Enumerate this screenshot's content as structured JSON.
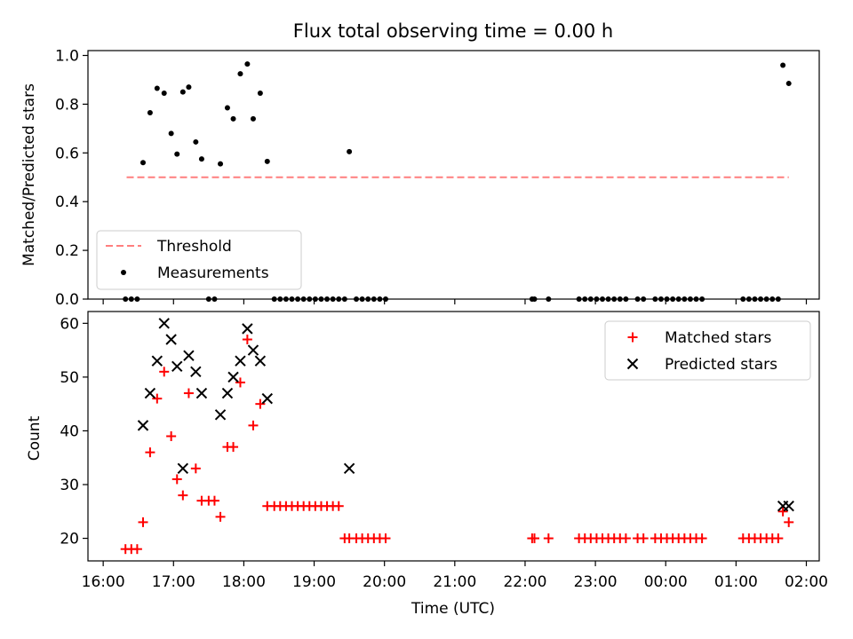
{
  "figure": {
    "title": "Flux total observing time = 0.00 h"
  },
  "colors": {
    "threshold": "#ff7f7f",
    "measurements": "#000000",
    "matched": "#ff0000",
    "predicted": "#000000"
  },
  "chart_data": [
    {
      "type": "scatter",
      "xlabel": "",
      "ylabel": "Matched/Predicted stars",
      "ylim": [
        0.0,
        1.02
      ],
      "yticks": [
        "0.0",
        "0.2",
        "0.4",
        "0.6",
        "0.8",
        "1.0"
      ],
      "legend": {
        "placement": "lower-left",
        "entries": [
          "Threshold",
          "Measurements"
        ]
      },
      "threshold": {
        "name": "Threshold",
        "value": 0.5,
        "x_range": [
          "16:20",
          "01:45"
        ]
      },
      "series": [
        {
          "name": "Measurements",
          "marker": "dot",
          "points": [
            [
              "16:19",
              0.0
            ],
            [
              "16:24",
              0.0
            ],
            [
              "16:29",
              0.0
            ],
            [
              "16:34",
              0.56
            ],
            [
              "16:40",
              0.765
            ],
            [
              "16:46",
              0.865
            ],
            [
              "16:52",
              0.845
            ],
            [
              "16:58",
              0.68
            ],
            [
              "17:03",
              0.595
            ],
            [
              "17:08",
              0.85
            ],
            [
              "17:13",
              0.87
            ],
            [
              "17:19",
              0.645
            ],
            [
              "17:24",
              0.575
            ],
            [
              "17:30",
              0.0
            ],
            [
              "17:35",
              0.0
            ],
            [
              "17:40",
              0.555
            ],
            [
              "17:46",
              0.785
            ],
            [
              "17:51",
              0.74
            ],
            [
              "17:57",
              0.925
            ],
            [
              "18:03",
              0.965
            ],
            [
              "18:08",
              0.74
            ],
            [
              "18:14",
              0.845
            ],
            [
              "18:20",
              0.565
            ],
            [
              "18:26",
              0.0
            ],
            [
              "18:31",
              0.0
            ],
            [
              "18:36",
              0.0
            ],
            [
              "18:41",
              0.0
            ],
            [
              "18:46",
              0.0
            ],
            [
              "18:51",
              0.0
            ],
            [
              "18:56",
              0.0
            ],
            [
              "19:01",
              0.0
            ],
            [
              "19:06",
              0.0
            ],
            [
              "19:11",
              0.0
            ],
            [
              "19:16",
              0.0
            ],
            [
              "19:21",
              0.0
            ],
            [
              "19:26",
              0.0
            ],
            [
              "19:30",
              0.605
            ],
            [
              "19:36",
              0.0
            ],
            [
              "19:41",
              0.0
            ],
            [
              "19:46",
              0.0
            ],
            [
              "19:51",
              0.0
            ],
            [
              "19:56",
              0.0
            ],
            [
              "20:01",
              0.0
            ],
            [
              "22:06",
              0.0
            ],
            [
              "22:08",
              0.0
            ],
            [
              "22:20",
              0.0
            ],
            [
              "22:46",
              0.0
            ],
            [
              "22:51",
              0.0
            ],
            [
              "22:56",
              0.0
            ],
            [
              "23:01",
              0.0
            ],
            [
              "23:06",
              0.0
            ],
            [
              "23:11",
              0.0
            ],
            [
              "23:16",
              0.0
            ],
            [
              "23:21",
              0.0
            ],
            [
              "23:26",
              0.0
            ],
            [
              "23:36",
              0.0
            ],
            [
              "23:41",
              0.0
            ],
            [
              "23:51",
              0.0
            ],
            [
              "23:56",
              0.0
            ],
            [
              "00:01",
              0.0
            ],
            [
              "00:06",
              0.0
            ],
            [
              "00:11",
              0.0
            ],
            [
              "00:16",
              0.0
            ],
            [
              "00:21",
              0.0
            ],
            [
              "00:26",
              0.0
            ],
            [
              "00:31",
              0.0
            ],
            [
              "01:06",
              0.0
            ],
            [
              "01:11",
              0.0
            ],
            [
              "01:16",
              0.0
            ],
            [
              "01:21",
              0.0
            ],
            [
              "01:26",
              0.0
            ],
            [
              "01:31",
              0.0
            ],
            [
              "01:36",
              0.0
            ],
            [
              "01:40",
              0.96
            ],
            [
              "01:45",
              0.885
            ]
          ]
        }
      ]
    },
    {
      "type": "scatter",
      "xlabel": "Time (UTC)",
      "ylabel": "Count",
      "ylim": [
        15.8,
        62.2
      ],
      "xlim": [
        "15:47",
        "02:11"
      ],
      "yticks": [
        "20",
        "30",
        "40",
        "50",
        "60"
      ],
      "xticks": [
        "16:00",
        "17:00",
        "18:00",
        "19:00",
        "20:00",
        "21:00",
        "22:00",
        "23:00",
        "00:00",
        "01:00",
        "02:00"
      ],
      "legend": {
        "placement": "top-right",
        "entries": [
          "Matched stars",
          "Predicted stars"
        ]
      },
      "series": [
        {
          "name": "Matched stars",
          "marker": "plus",
          "points": [
            [
              "16:19",
              18
            ],
            [
              "16:24",
              18
            ],
            [
              "16:29",
              18
            ],
            [
              "16:34",
              23
            ],
            [
              "16:40",
              36
            ],
            [
              "16:46",
              46
            ],
            [
              "16:52",
              51
            ],
            [
              "16:58",
              39
            ],
            [
              "17:03",
              31
            ],
            [
              "17:08",
              28
            ],
            [
              "17:13",
              47
            ],
            [
              "17:19",
              33
            ],
            [
              "17:24",
              27
            ],
            [
              "17:30",
              27
            ],
            [
              "17:35",
              27
            ],
            [
              "17:40",
              24
            ],
            [
              "17:46",
              37
            ],
            [
              "17:51",
              37
            ],
            [
              "17:57",
              49
            ],
            [
              "18:03",
              57
            ],
            [
              "18:08",
              41
            ],
            [
              "18:14",
              45
            ],
            [
              "18:20",
              26
            ],
            [
              "18:26",
              26
            ],
            [
              "18:31",
              26
            ],
            [
              "18:36",
              26
            ],
            [
              "18:41",
              26
            ],
            [
              "18:46",
              26
            ],
            [
              "18:51",
              26
            ],
            [
              "18:56",
              26
            ],
            [
              "19:01",
              26
            ],
            [
              "19:06",
              26
            ],
            [
              "19:11",
              26
            ],
            [
              "19:16",
              26
            ],
            [
              "19:21",
              26
            ],
            [
              "19:26",
              20
            ],
            [
              "19:30",
              20
            ],
            [
              "19:36",
              20
            ],
            [
              "19:41",
              20
            ],
            [
              "19:46",
              20
            ],
            [
              "19:51",
              20
            ],
            [
              "19:56",
              20
            ],
            [
              "20:01",
              20
            ],
            [
              "22:06",
              20
            ],
            [
              "22:08",
              20
            ],
            [
              "22:20",
              20
            ],
            [
              "22:46",
              20
            ],
            [
              "22:51",
              20
            ],
            [
              "22:56",
              20
            ],
            [
              "23:01",
              20
            ],
            [
              "23:06",
              20
            ],
            [
              "23:11",
              20
            ],
            [
              "23:16",
              20
            ],
            [
              "23:21",
              20
            ],
            [
              "23:26",
              20
            ],
            [
              "23:36",
              20
            ],
            [
              "23:41",
              20
            ],
            [
              "23:51",
              20
            ],
            [
              "23:56",
              20
            ],
            [
              "00:01",
              20
            ],
            [
              "00:06",
              20
            ],
            [
              "00:11",
              20
            ],
            [
              "00:16",
              20
            ],
            [
              "00:21",
              20
            ],
            [
              "00:26",
              20
            ],
            [
              "00:31",
              20
            ],
            [
              "01:06",
              20
            ],
            [
              "01:11",
              20
            ],
            [
              "01:16",
              20
            ],
            [
              "01:21",
              20
            ],
            [
              "01:26",
              20
            ],
            [
              "01:31",
              20
            ],
            [
              "01:36",
              20
            ],
            [
              "01:40",
              25
            ],
            [
              "01:45",
              23
            ]
          ]
        },
        {
          "name": "Predicted stars",
          "marker": "x",
          "points": [
            [
              "16:34",
              41
            ],
            [
              "16:40",
              47
            ],
            [
              "16:46",
              53
            ],
            [
              "16:52",
              60
            ],
            [
              "16:58",
              57
            ],
            [
              "17:03",
              52
            ],
            [
              "17:08",
              33
            ],
            [
              "17:13",
              54
            ],
            [
              "17:19",
              51
            ],
            [
              "17:24",
              47
            ],
            [
              "17:40",
              43
            ],
            [
              "17:46",
              47
            ],
            [
              "17:51",
              50
            ],
            [
              "17:57",
              53
            ],
            [
              "18:03",
              59
            ],
            [
              "18:08",
              55
            ],
            [
              "18:14",
              53
            ],
            [
              "18:20",
              46
            ],
            [
              "19:30",
              33
            ],
            [
              "01:40",
              26
            ],
            [
              "01:45",
              26
            ]
          ]
        }
      ]
    }
  ]
}
